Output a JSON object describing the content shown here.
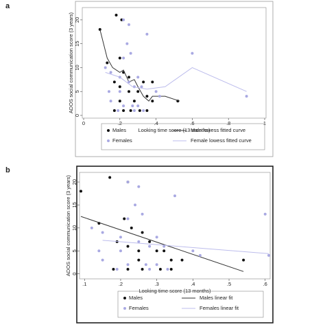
{
  "chart_data": [
    {
      "type": "scatter",
      "label": "a",
      "x_label": "Looking time score (13 months)",
      "y_label": "ADOS social communication score (3 years)",
      "xlim": [
        0,
        1
      ],
      "xticks": [
        0,
        {
          "value": 0.2,
          "label": ".2"
        },
        {
          "value": 0.4,
          "label": ".4"
        },
        {
          "value": 0.6,
          "label": ".6"
        },
        {
          "value": 0.8,
          "label": ".8"
        },
        1
      ],
      "ylim": [
        0,
        22
      ],
      "yticks": [
        0,
        5,
        10,
        15,
        20
      ],
      "series": [
        {
          "name": "Males",
          "mode": "markers",
          "color": "#111111",
          "x": [
            0.18,
            0.21,
            0.09,
            0.13,
            0.2,
            0.22,
            0.25,
            0.17,
            0.2,
            0.25,
            0.3,
            0.35,
            0.33,
            0.38,
            0.2,
            0.28,
            0.38,
            0.52,
            0.17,
            0.22,
            0.26,
            0.31,
            0.35
          ],
          "values": [
            21,
            20,
            18,
            11,
            12,
            9,
            8,
            7,
            6,
            5,
            5,
            4,
            7,
            7,
            3,
            3,
            3,
            3,
            1,
            1,
            1,
            1,
            1
          ]
        },
        {
          "name": "Male lowess fitted curve",
          "mode": "line",
          "color": "#333333",
          "x": [
            0.09,
            0.13,
            0.16,
            0.2,
            0.22,
            0.25,
            0.28,
            0.3,
            0.33,
            0.36,
            0.38,
            0.45,
            0.53
          ],
          "values": [
            18,
            12,
            10,
            9,
            9.5,
            7,
            7.5,
            6,
            4,
            3,
            4,
            4,
            3
          ]
        },
        {
          "name": "Females",
          "mode": "markers",
          "color": "#a9a9e2",
          "x": [
            0.22,
            0.25,
            0.35,
            0.24,
            0.26,
            0.22,
            0.6,
            0.12,
            0.15,
            0.2,
            0.3,
            0.25,
            0.28,
            0.32,
            0.14,
            0.2,
            0.4,
            0.42,
            0.15,
            0.22,
            0.27,
            0.3,
            0.9,
            0.19,
            0.28,
            0.33
          ],
          "values": [
            20,
            19,
            17,
            15,
            13,
            12,
            13,
            10,
            9,
            8,
            8,
            7,
            6,
            6,
            5,
            5,
            5,
            4,
            3,
            2,
            2,
            2,
            4,
            1,
            1,
            1
          ]
        },
        {
          "name": "Female lowess fitted curve",
          "mode": "line",
          "color": "#bcbcec",
          "x": [
            0.12,
            0.2,
            0.27,
            0.35,
            0.45,
            0.6,
            0.9
          ],
          "values": [
            9,
            8,
            6,
            5.5,
            6,
            10,
            5
          ]
        }
      ]
    },
    {
      "type": "scatter",
      "label": "b",
      "x_label": "Looking time score (13 months)",
      "y_label": "ADOS social communication score (3 years)",
      "xlim": [
        0.09,
        0.61
      ],
      "xticks": [
        {
          "value": 0.1,
          "label": ".1"
        },
        {
          "value": 0.2,
          "label": ".2"
        },
        {
          "value": 0.3,
          "label": ".3"
        },
        {
          "value": 0.4,
          "label": ".4"
        },
        {
          "value": 0.5,
          "label": ".5"
        },
        {
          "value": 0.6,
          "label": ".6"
        }
      ],
      "ylim": [
        -0.5,
        21.5
      ],
      "yticks": [
        0,
        5,
        10,
        15,
        20
      ],
      "series": [
        {
          "name": "Males",
          "mode": "markers",
          "color": "#111111",
          "x": [
            0.09,
            0.17,
            0.22,
            0.14,
            0.21,
            0.23,
            0.26,
            0.19,
            0.22,
            0.25,
            0.3,
            0.32,
            0.28,
            0.37,
            0.34,
            0.25,
            0.54,
            0.18,
            0.22,
            0.26,
            0.31,
            0.34
          ],
          "values": [
            18,
            21,
            20,
            11,
            12,
            10,
            9,
            7,
            6,
            5,
            5,
            5,
            7,
            3,
            3,
            3,
            3,
            1,
            1,
            1,
            1,
            1
          ]
        },
        {
          "name": "Males linear fit",
          "mode": "line",
          "color": "#333333",
          "x": [
            0.09,
            0.54
          ],
          "values": [
            12.5,
            0.5
          ]
        },
        {
          "name": "Females",
          "mode": "markers",
          "color": "#a9a9e2",
          "x": [
            0.22,
            0.25,
            0.35,
            0.24,
            0.26,
            0.22,
            0.6,
            0.12,
            0.15,
            0.2,
            0.3,
            0.25,
            0.28,
            0.32,
            0.14,
            0.2,
            0.4,
            0.42,
            0.15,
            0.22,
            0.27,
            0.3,
            0.61,
            0.19,
            0.28,
            0.33
          ],
          "values": [
            20,
            19,
            17,
            15,
            13,
            12,
            13,
            10,
            9,
            8,
            8,
            7,
            6,
            6,
            5,
            5,
            5,
            4,
            3,
            2,
            2,
            2,
            4,
            1,
            1,
            1
          ]
        },
        {
          "name": "Females linear fit",
          "mode": "line",
          "color": "#bcbcec",
          "x": [
            0.15,
            0.61
          ],
          "values": [
            7.3,
            4.4
          ]
        }
      ]
    }
  ]
}
